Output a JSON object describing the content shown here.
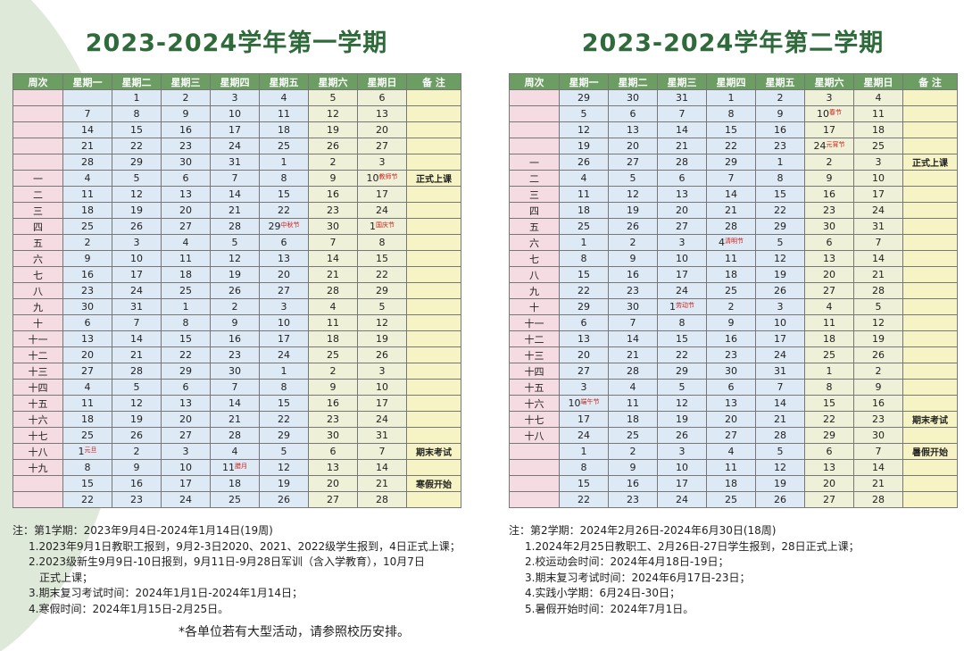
{
  "semesters": [
    {
      "title": "2023-2024学年第一学期",
      "headers": [
        "周次",
        "星期一",
        "星期二",
        "星期三",
        "星期四",
        "星期五",
        "星期六",
        "星期日",
        "备 注"
      ],
      "rows": [
        [
          "",
          "",
          "1",
          "2",
          "3",
          "4",
          "5",
          "6",
          ""
        ],
        [
          "",
          "7",
          "8",
          "9",
          "10",
          "11",
          "12",
          "13",
          ""
        ],
        [
          "",
          "14",
          "15",
          "16",
          "17",
          "18",
          "19",
          "20",
          ""
        ],
        [
          "",
          "21",
          "22",
          "23",
          "24",
          "25",
          "26",
          "27",
          ""
        ],
        [
          "",
          "28",
          "29",
          "30",
          "31",
          "1",
          "2",
          "3",
          ""
        ],
        [
          "一",
          "4",
          "5",
          "6",
          "7",
          "8",
          "9",
          {
            "day": "10",
            "tag": "教师节"
          },
          "正式上课"
        ],
        [
          "二",
          "11",
          "12",
          "13",
          "14",
          "15",
          "16",
          "17",
          ""
        ],
        [
          "三",
          "18",
          "19",
          "20",
          "21",
          "22",
          "23",
          "24",
          ""
        ],
        [
          "四",
          "25",
          "26",
          "27",
          "28",
          {
            "day": "29",
            "tag": "中秋节"
          },
          "30",
          {
            "day": "1",
            "tag": "国庆节"
          },
          ""
        ],
        [
          "五",
          "2",
          "3",
          "4",
          "5",
          "6",
          "7",
          "8",
          ""
        ],
        [
          "六",
          "9",
          "10",
          "11",
          "12",
          "13",
          "14",
          "15",
          ""
        ],
        [
          "七",
          "16",
          "17",
          "18",
          "19",
          "20",
          "21",
          "22",
          ""
        ],
        [
          "八",
          "23",
          "24",
          "25",
          "26",
          "27",
          "28",
          "29",
          ""
        ],
        [
          "九",
          "30",
          "31",
          "1",
          "2",
          "3",
          "4",
          "5",
          ""
        ],
        [
          "十",
          "6",
          "7",
          "8",
          "9",
          "10",
          "11",
          "12",
          ""
        ],
        [
          "十一",
          "13",
          "14",
          "15",
          "16",
          "17",
          "18",
          "19",
          ""
        ],
        [
          "十二",
          "20",
          "21",
          "22",
          "23",
          "24",
          "25",
          "26",
          ""
        ],
        [
          "十三",
          "27",
          "28",
          "29",
          "30",
          "1",
          "2",
          "3",
          ""
        ],
        [
          "十四",
          "4",
          "5",
          "6",
          "7",
          "8",
          "9",
          "10",
          ""
        ],
        [
          "十五",
          "11",
          "12",
          "13",
          "14",
          "15",
          "16",
          "17",
          ""
        ],
        [
          "十六",
          "18",
          "19",
          "20",
          "21",
          "22",
          "23",
          "24",
          ""
        ],
        [
          "十七",
          "25",
          "26",
          "27",
          "28",
          "29",
          "30",
          "31",
          ""
        ],
        [
          "十八",
          {
            "day": "1",
            "tag": "元旦"
          },
          "2",
          "3",
          "4",
          "5",
          "6",
          "7",
          "期末考试"
        ],
        [
          "十九",
          "8",
          "9",
          "10",
          {
            "day": "11",
            "tag": "腊月"
          },
          "12",
          "13",
          "14",
          ""
        ],
        [
          "",
          "15",
          "16",
          "17",
          "18",
          "19",
          "20",
          "21",
          "寒假开始"
        ],
        [
          "",
          "22",
          "23",
          "24",
          "25",
          "26",
          "27",
          "28",
          ""
        ]
      ],
      "notes": [
        "注：第1学期：2023年9月4日-2024年1月14日(19周)",
        "1.2023年9月1日教职工报到，9月2-3日2020、2021、2022级学生报到，4日正式上课；",
        "2.2023级新生9月9日-10日报到，9月11日-9月28日军训（含入学教育），10月7日",
        "正式上课；",
        "3.期末复习考试时间：2024年1月1日-2024年1月14日；",
        "4.寒假时间：2024年1月15日-2月25日。"
      ]
    },
    {
      "title": "2023-2024学年第二学期",
      "headers": [
        "周次",
        "星期一",
        "星期二",
        "星期三",
        "星期四",
        "星期五",
        "星期六",
        "星期日",
        "备 注"
      ],
      "rows": [
        [
          "",
          "29",
          "30",
          "31",
          "1",
          "2",
          "3",
          "4",
          ""
        ],
        [
          "",
          "5",
          "6",
          "7",
          "8",
          "9",
          {
            "day": "10",
            "tag": "春节"
          },
          "11",
          ""
        ],
        [
          "",
          "12",
          "13",
          "14",
          "15",
          "16",
          "17",
          "18",
          ""
        ],
        [
          "",
          "19",
          "20",
          "21",
          "22",
          "23",
          {
            "day": "24",
            "tag": "元宵节"
          },
          "25",
          ""
        ],
        [
          "一",
          "26",
          "27",
          "28",
          "29",
          "1",
          "2",
          "3",
          "正式上课"
        ],
        [
          "二",
          "4",
          "5",
          "6",
          "7",
          "8",
          "9",
          "10",
          ""
        ],
        [
          "三",
          "11",
          "12",
          "13",
          "14",
          "15",
          "16",
          "17",
          ""
        ],
        [
          "四",
          "18",
          "19",
          "20",
          "21",
          "22",
          "23",
          "24",
          ""
        ],
        [
          "五",
          "25",
          "26",
          "27",
          "28",
          "29",
          "30",
          "31",
          ""
        ],
        [
          "六",
          "1",
          "2",
          "3",
          {
            "day": "4",
            "tag": "清明节"
          },
          "5",
          "6",
          "7",
          ""
        ],
        [
          "七",
          "8",
          "9",
          "10",
          "11",
          "12",
          "13",
          "14",
          ""
        ],
        [
          "八",
          "15",
          "16",
          "17",
          "18",
          "19",
          "20",
          "21",
          ""
        ],
        [
          "九",
          "22",
          "23",
          "24",
          "25",
          "26",
          "27",
          "28",
          ""
        ],
        [
          "十",
          "29",
          "30",
          {
            "day": "1",
            "tag": "劳动节"
          },
          "2",
          "3",
          "4",
          "5",
          ""
        ],
        [
          "十一",
          "6",
          "7",
          "8",
          "9",
          "10",
          "11",
          "12",
          ""
        ],
        [
          "十二",
          "13",
          "14",
          "15",
          "16",
          "17",
          "18",
          "19",
          ""
        ],
        [
          "十三",
          "20",
          "21",
          "22",
          "23",
          "24",
          "25",
          "26",
          ""
        ],
        [
          "十四",
          "27",
          "28",
          "29",
          "30",
          "31",
          "1",
          "2",
          ""
        ],
        [
          "十五",
          "3",
          "4",
          "5",
          "6",
          "7",
          "8",
          "9",
          ""
        ],
        [
          "十六",
          {
            "day": "10",
            "tag": "端午节"
          },
          "11",
          "12",
          "13",
          "14",
          "15",
          "16",
          ""
        ],
        [
          "十七",
          "17",
          "18",
          "19",
          "20",
          "21",
          "22",
          "23",
          "期末考试"
        ],
        [
          "十八",
          "24",
          "25",
          "26",
          "27",
          "28",
          "29",
          "30",
          ""
        ],
        [
          "",
          "1",
          "2",
          "3",
          "4",
          "5",
          "6",
          "7",
          "暑假开始"
        ],
        [
          "",
          "8",
          "9",
          "10",
          "11",
          "12",
          "13",
          "14",
          ""
        ],
        [
          "",
          "15",
          "16",
          "17",
          "18",
          "19",
          "20",
          "21",
          ""
        ],
        [
          "",
          "22",
          "23",
          "24",
          "25",
          "26",
          "27",
          "28",
          ""
        ]
      ],
      "notes": [
        "注：第2学期：2024年2月26日-2024年6月30日(18周)",
        "1.2024年2月25日教职工、2月26日-27日学生报到，28日正式上课；",
        "2.校运动会时间：2024年4月18日-19日；",
        "3.期末复习考试时间：2024年6月17日-23日；",
        "4.实践小学期：6月24日-30日；",
        "5.暑假开始时间：2024年7月1日。"
      ]
    }
  ],
  "footer": "*各单位若有大型活动，请参照校历安排。"
}
